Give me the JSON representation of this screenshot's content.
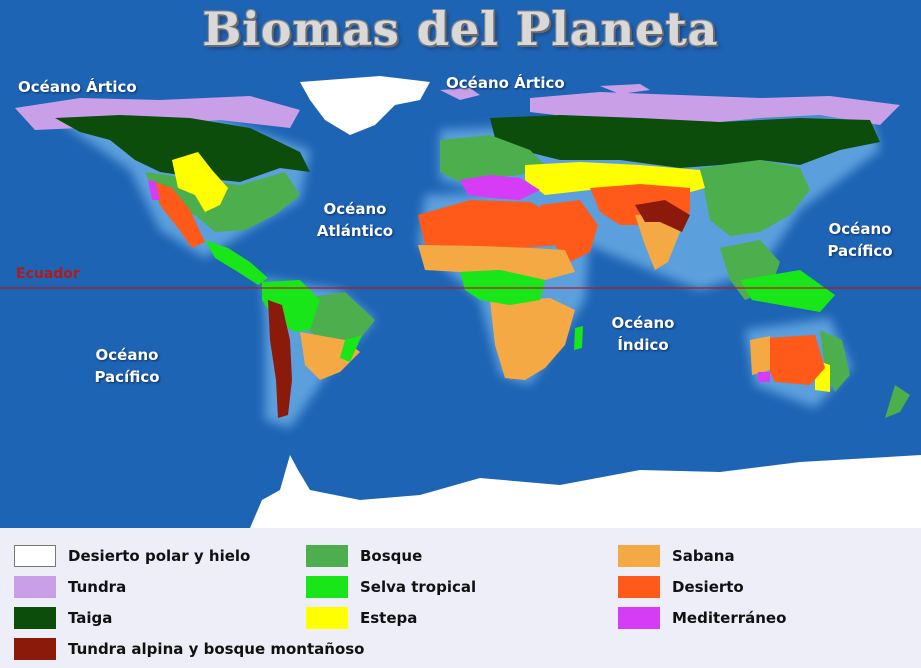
{
  "title": "Biomas del Planeta",
  "labels": {
    "arctic_left": "Océano Ártico",
    "arctic_right": "Océano Ártico",
    "atlantic_1": "Océano",
    "atlantic_2": "Atlántico",
    "pacific_left_1": "Océano",
    "pacific_left_2": "Pacífico",
    "pacific_right_1": "Océano",
    "pacific_right_2": "Pacífico",
    "indian_1": "Océano",
    "indian_2": "Índico",
    "equator": "Ecuador"
  },
  "colors": {
    "ocean": "#1e64b4",
    "polar": "#ffffff",
    "tundra": "#c9a0e8",
    "taiga": "#0c4d0c",
    "forest": "#4cae4c",
    "rainforest": "#19e619",
    "steppe": "#ffff00",
    "savanna": "#f5a945",
    "desert": "#ff5a1a",
    "mediterranean": "#d63cf5",
    "alpine": "#8c1a0a",
    "equator_line": "#b31a1a"
  },
  "legend": [
    {
      "label": "Desierto polar y hielo",
      "color": "#ffffff"
    },
    {
      "label": "Tundra",
      "color": "#c9a0e8"
    },
    {
      "label": "Taiga",
      "color": "#0c4d0c"
    },
    {
      "label": "Tundra alpina y bosque montañoso",
      "color": "#8c1a0a"
    },
    {
      "label": "Bosque",
      "color": "#4cae4c"
    },
    {
      "label": "Selva tropical",
      "color": "#19e619"
    },
    {
      "label": "Estepa",
      "color": "#ffff00"
    },
    {
      "label": "Sabana",
      "color": "#f5a945"
    },
    {
      "label": "Desierto",
      "color": "#ff5a1a"
    },
    {
      "label": "Mediterráneo",
      "color": "#d63cf5"
    }
  ]
}
